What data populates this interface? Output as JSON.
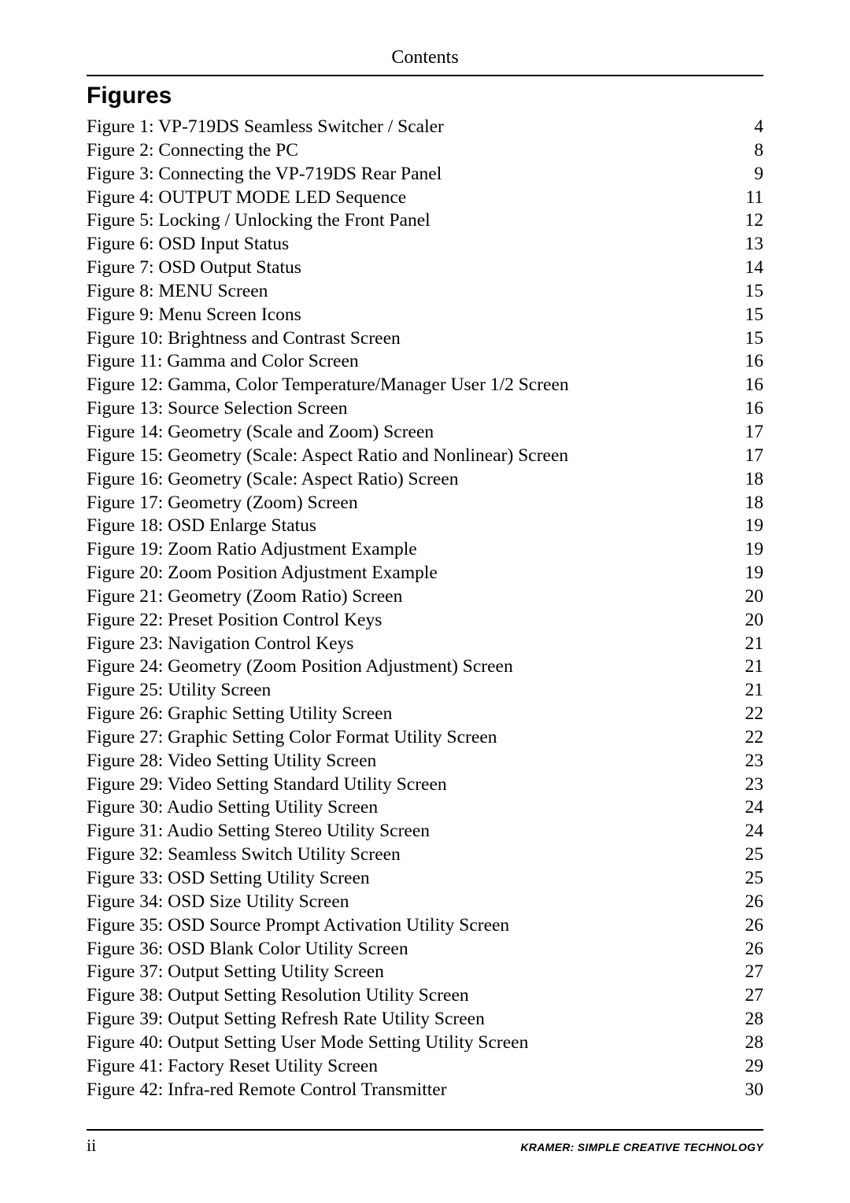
{
  "header": {
    "title": "Contents"
  },
  "section": {
    "heading": "Figures"
  },
  "figures": [
    {
      "label": "Figure 1: VP-719DS Seamless Switcher / Scaler",
      "page": "4"
    },
    {
      "label": "Figure 2: Connecting the PC",
      "page": "8"
    },
    {
      "label": "Figure 3: Connecting the VP-719DS Rear Panel",
      "page": "9"
    },
    {
      "label": "Figure 4: OUTPUT MODE LED Sequence",
      "page": "11"
    },
    {
      "label": "Figure 5: Locking / Unlocking the Front Panel",
      "page": "12"
    },
    {
      "label": "Figure 6: OSD Input Status",
      "page": "13"
    },
    {
      "label": "Figure 7: OSD Output Status",
      "page": "14"
    },
    {
      "label": "Figure 8: MENU Screen",
      "page": "15"
    },
    {
      "label": "Figure 9: Menu Screen Icons",
      "page": "15"
    },
    {
      "label": "Figure 10: Brightness and Contrast Screen",
      "page": "15"
    },
    {
      "label": "Figure 11: Gamma and Color Screen",
      "page": "16"
    },
    {
      "label": "Figure 12: Gamma, Color Temperature/Manager User 1/2 Screen",
      "page": "16"
    },
    {
      "label": "Figure 13: Source Selection Screen",
      "page": "16"
    },
    {
      "label": "Figure 14: Geometry (Scale and Zoom) Screen",
      "page": "17"
    },
    {
      "label": "Figure 15: Geometry (Scale: Aspect Ratio and Nonlinear) Screen",
      "page": "17"
    },
    {
      "label": "Figure 16: Geometry (Scale: Aspect Ratio) Screen",
      "page": "18"
    },
    {
      "label": "Figure 17: Geometry (Zoom) Screen",
      "page": "18"
    },
    {
      "label": "Figure 18: OSD Enlarge Status",
      "page": "19"
    },
    {
      "label": "Figure 19: Zoom Ratio Adjustment Example",
      "page": "19"
    },
    {
      "label": "Figure 20: Zoom Position Adjustment Example",
      "page": "19"
    },
    {
      "label": "Figure 21: Geometry (Zoom Ratio) Screen",
      "page": "20"
    },
    {
      "label": "Figure 22: Preset Position Control Keys",
      "page": "20"
    },
    {
      "label": "Figure 23: Navigation Control Keys",
      "page": "21"
    },
    {
      "label": "Figure 24: Geometry (Zoom Position Adjustment) Screen",
      "page": "21"
    },
    {
      "label": "Figure 25: Utility Screen",
      "page": "21"
    },
    {
      "label": "Figure 26: Graphic Setting Utility Screen",
      "page": "22"
    },
    {
      "label": "Figure 27: Graphic Setting Color Format Utility Screen",
      "page": "22"
    },
    {
      "label": "Figure 28: Video Setting Utility Screen",
      "page": "23"
    },
    {
      "label": "Figure 29: Video Setting Standard Utility Screen",
      "page": "23"
    },
    {
      "label": "Figure 30: Audio Setting Utility Screen",
      "page": "24"
    },
    {
      "label": "Figure 31: Audio Setting Stereo Utility Screen",
      "page": "24"
    },
    {
      "label": "Figure 32: Seamless Switch Utility Screen",
      "page": "25"
    },
    {
      "label": "Figure 33: OSD Setting Utility Screen",
      "page": "25"
    },
    {
      "label": "Figure 34: OSD Size Utility Screen",
      "page": "26"
    },
    {
      "label": "Figure 35: OSD Source Prompt Activation Utility Screen",
      "page": "26"
    },
    {
      "label": "Figure 36: OSD Blank Color Utility Screen",
      "page": "26"
    },
    {
      "label": "Figure 37: Output Setting Utility Screen",
      "page": "27"
    },
    {
      "label": "Figure 38: Output Setting Resolution Utility Screen",
      "page": "27"
    },
    {
      "label": "Figure 39: Output Setting Refresh Rate Utility Screen",
      "page": "28"
    },
    {
      "label": "Figure 40: Output Setting User Mode Setting Utility Screen",
      "page": "28"
    },
    {
      "label": "Figure 41: Factory Reset Utility Screen",
      "page": "29"
    },
    {
      "label": "Figure 42: Infra-red Remote Control Transmitter",
      "page": "30"
    }
  ],
  "footer": {
    "page_number": "ii",
    "brand": "KRAMER:  SIMPLE CREATIVE TECHNOLOGY"
  }
}
